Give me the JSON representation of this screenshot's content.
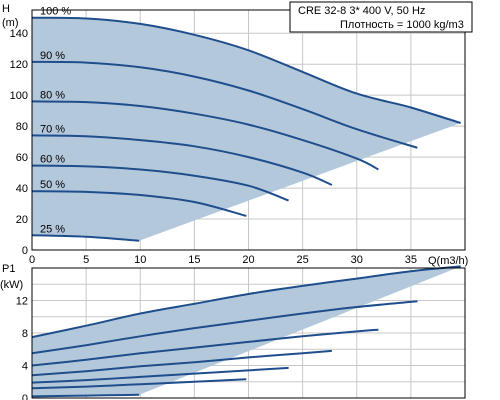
{
  "info_box": {
    "line1": "CRE 32-8    3* 400 V, 50 Hz",
    "line2": "Плотность = 1000 kg/m3"
  },
  "colors": {
    "curve": "#1f4e8c",
    "fill": "#b4c8dc",
    "grid": "#c8c8c8",
    "frame": "#000000"
  },
  "chart_data": [
    {
      "type": "line",
      "title": "",
      "xlabel": "Q(m3/h)",
      "ylabel": "H (m)",
      "xlim": [
        0,
        40
      ],
      "ylim": [
        0,
        155
      ],
      "x_ticks": [
        "0",
        "5",
        "10",
        "15",
        "20",
        "25",
        "30",
        "35"
      ],
      "y_ticks": [
        "0",
        "20",
        "40",
        "60",
        "80",
        "100",
        "120",
        "140"
      ],
      "grid": true,
      "fill_under": true,
      "series": [
        {
          "name": "100 %",
          "x": [
            0,
            5,
            10,
            15,
            20,
            25,
            30,
            35,
            39.6
          ],
          "y": [
            150,
            149.5,
            146,
            139,
            129,
            115,
            101,
            92,
            82
          ]
        },
        {
          "name": "90 %",
          "x": [
            0,
            5,
            10,
            15,
            20,
            25,
            30,
            35.6
          ],
          "y": [
            121.5,
            121,
            118,
            112,
            103,
            91,
            78,
            66
          ]
        },
        {
          "name": "80 %",
          "x": [
            0,
            5,
            10,
            15,
            20,
            25,
            30,
            32
          ],
          "y": [
            96,
            95.5,
            93,
            88,
            81,
            71,
            59,
            52
          ]
        },
        {
          "name": "70 %",
          "x": [
            0,
            5,
            10,
            15,
            20,
            25,
            27.7
          ],
          "y": [
            74,
            73.5,
            71,
            67,
            60,
            50,
            42
          ]
        },
        {
          "name": "60 %",
          "x": [
            0,
            5,
            10,
            15,
            20,
            23.7
          ],
          "y": [
            54.5,
            54,
            52,
            48,
            41.5,
            32
          ]
        },
        {
          "name": "50 %",
          "x": [
            0,
            5,
            10,
            15,
            19.8
          ],
          "y": [
            38,
            37.5,
            35.5,
            31,
            22
          ]
        },
        {
          "name": "25 %",
          "x": [
            0,
            5,
            9.9
          ],
          "y": [
            9.5,
            8.5,
            6
          ]
        }
      ]
    },
    {
      "type": "line",
      "title": "",
      "xlabel": "",
      "ylabel": "P1 (kW)",
      "xlim": [
        0,
        40
      ],
      "ylim": [
        0,
        16
      ],
      "y_ticks": [
        "0",
        "4",
        "8",
        "12"
      ],
      "y_tick_values": [
        0,
        4,
        8,
        12
      ],
      "grid": true,
      "fill_under": true,
      "series": [
        {
          "name": "100 %",
          "x": [
            0,
            5,
            10,
            15,
            20,
            25,
            30,
            35,
            39.6
          ],
          "y": [
            7.5,
            8.9,
            10.4,
            11.6,
            12.8,
            13.8,
            14.7,
            15.6,
            16.2
          ]
        },
        {
          "name": "90 %",
          "x": [
            0,
            5,
            10,
            15,
            20,
            25,
            30,
            35.6
          ],
          "y": [
            5.5,
            6.5,
            7.6,
            8.6,
            9.5,
            10.4,
            11.2,
            11.9
          ]
        },
        {
          "name": "80 %",
          "x": [
            0,
            5,
            10,
            15,
            20,
            25,
            30,
            32
          ],
          "y": [
            4.0,
            4.7,
            5.5,
            6.2,
            6.9,
            7.6,
            8.2,
            8.4
          ]
        },
        {
          "name": "70 %",
          "x": [
            0,
            5,
            10,
            15,
            20,
            25,
            27.7
          ],
          "y": [
            2.8,
            3.3,
            3.9,
            4.4,
            5.0,
            5.5,
            5.8
          ]
        },
        {
          "name": "60 %",
          "x": [
            0,
            5,
            10,
            15,
            20,
            23.7
          ],
          "y": [
            1.9,
            2.2,
            2.6,
            3.0,
            3.4,
            3.7
          ]
        },
        {
          "name": "50 %",
          "x": [
            0,
            5,
            10,
            15,
            19.8
          ],
          "y": [
            1.2,
            1.4,
            1.7,
            2.0,
            2.3
          ]
        },
        {
          "name": "25 %",
          "x": [
            0,
            5,
            9.9
          ],
          "y": [
            0.2,
            0.3,
            0.4
          ]
        }
      ]
    }
  ]
}
